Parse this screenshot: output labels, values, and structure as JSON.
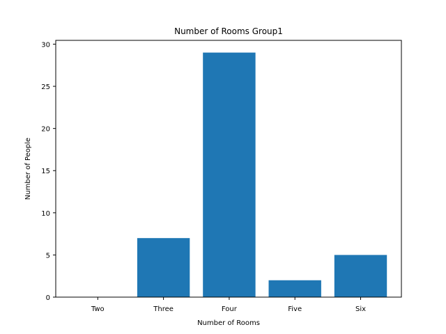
{
  "chart_data": {
    "type": "bar",
    "title": "Number of Rooms Group1",
    "xlabel": "Number of Rooms",
    "ylabel": "Number of People",
    "categories": [
      "Two",
      "Three",
      "Four",
      "Five",
      "Six"
    ],
    "values": [
      0,
      7,
      29,
      2,
      5
    ],
    "ylim": [
      0,
      30.45
    ],
    "yticks": [
      0,
      5,
      10,
      15,
      20,
      25,
      30
    ],
    "bar_color": "#1f77b4",
    "grid": false,
    "legend": "none"
  }
}
